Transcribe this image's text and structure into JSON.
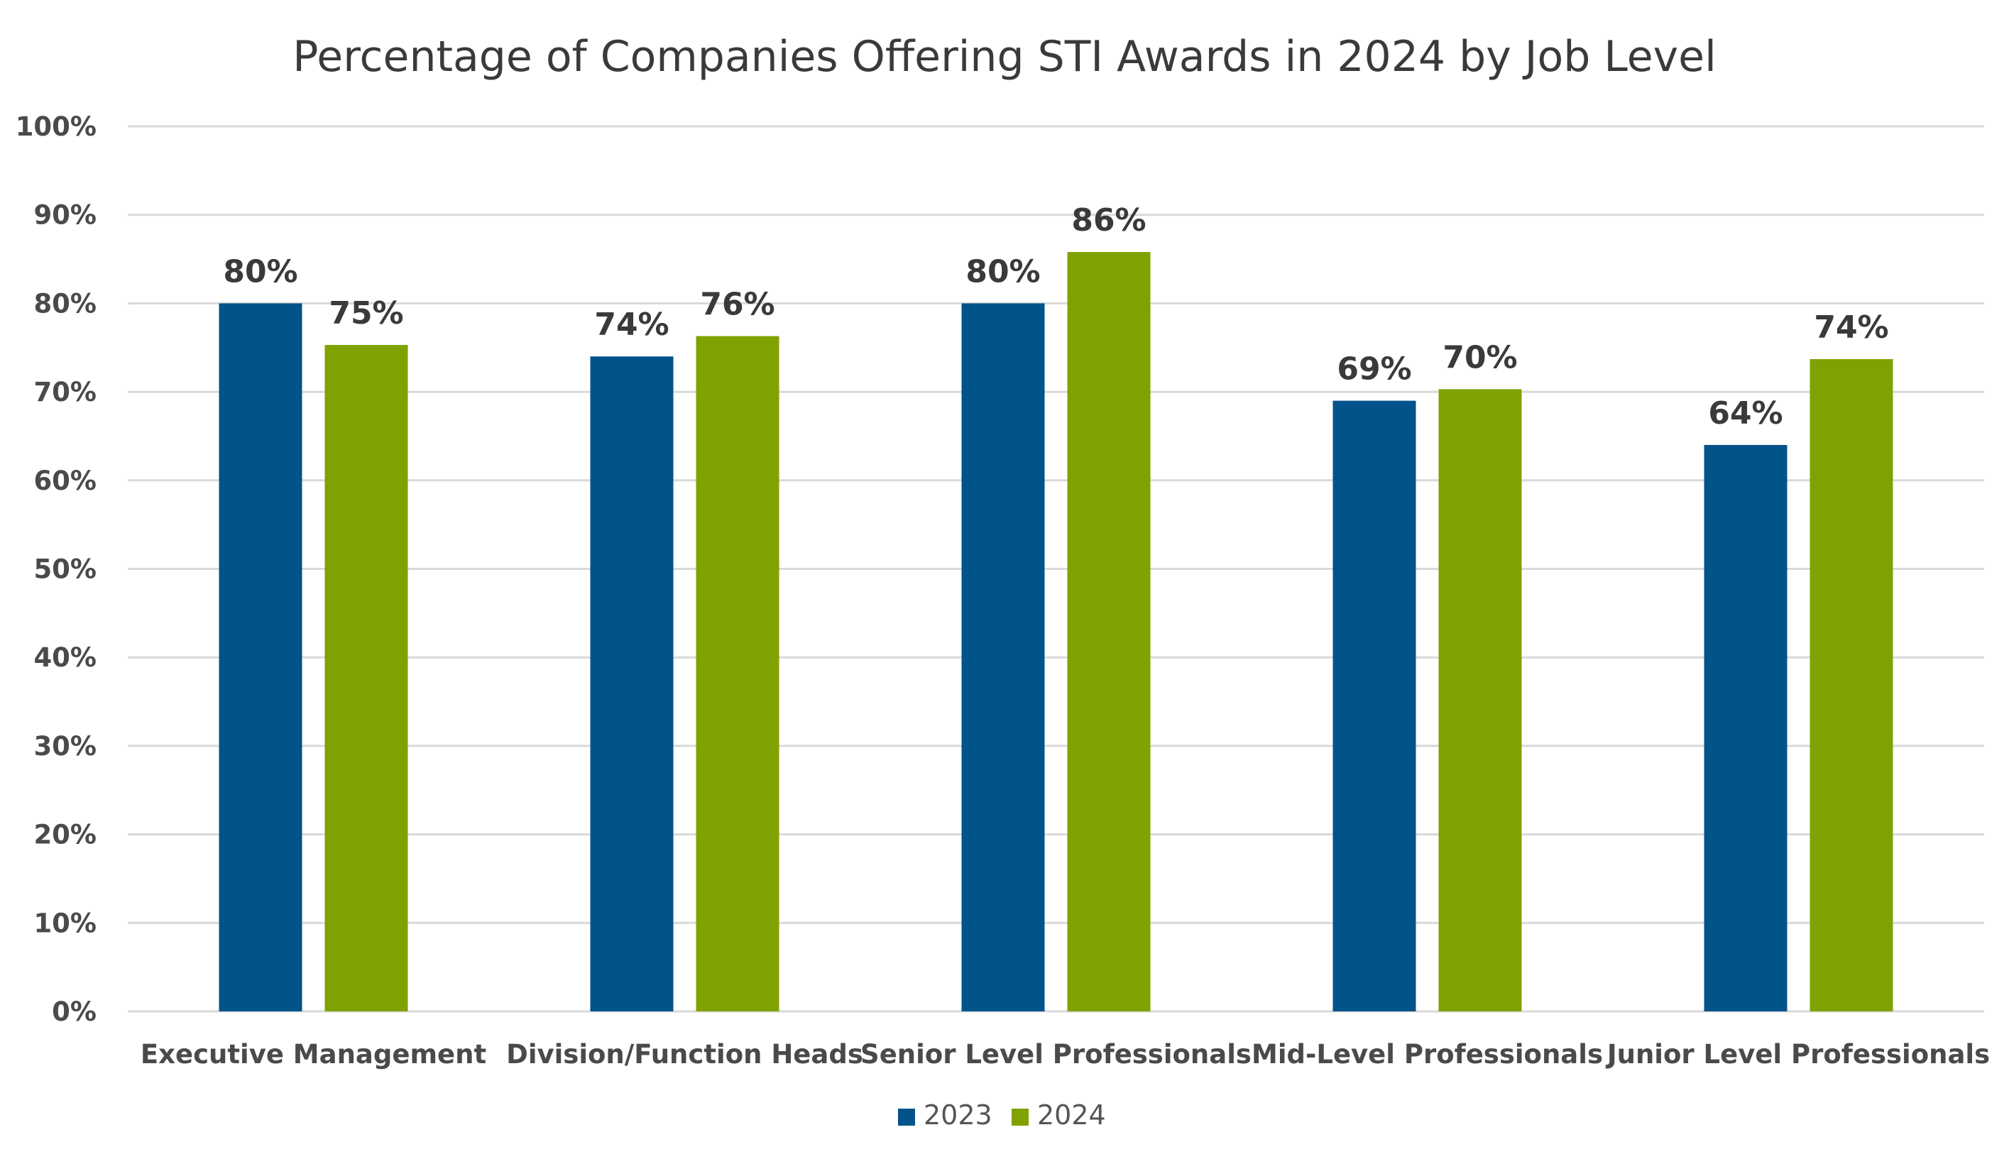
{
  "chart_data": {
    "type": "bar",
    "title": "Percentage of Companies Offering STI Awards in 2024 by Job Level",
    "xlabel": "",
    "ylabel": "",
    "ylim": [
      0,
      100
    ],
    "yticks": [
      0,
      10,
      20,
      30,
      40,
      50,
      60,
      70,
      80,
      90,
      100
    ],
    "ytick_labels": [
      "0%",
      "10%",
      "20%",
      "30%",
      "40%",
      "50%",
      "60%",
      "70%",
      "80%",
      "90%",
      "100%"
    ],
    "grid": true,
    "legend_position": "bottom",
    "categories": [
      "Executive Management",
      "Division/Function Heads",
      "Senior Level Professionals",
      "Mid-Level Professionals",
      "Junior Level Professionals"
    ],
    "series": [
      {
        "name": "2023",
        "color": "#02538a",
        "values": [
          80,
          74,
          80,
          69,
          64
        ],
        "labels": [
          "80%",
          "74%",
          "80%",
          "69%",
          "64%"
        ]
      },
      {
        "name": "2024",
        "color": "#80a200",
        "values": [
          75.3,
          76.3,
          85.8,
          70.3,
          73.7
        ],
        "labels": [
          "75%",
          "76%",
          "86%",
          "70%",
          "74%"
        ]
      }
    ]
  }
}
